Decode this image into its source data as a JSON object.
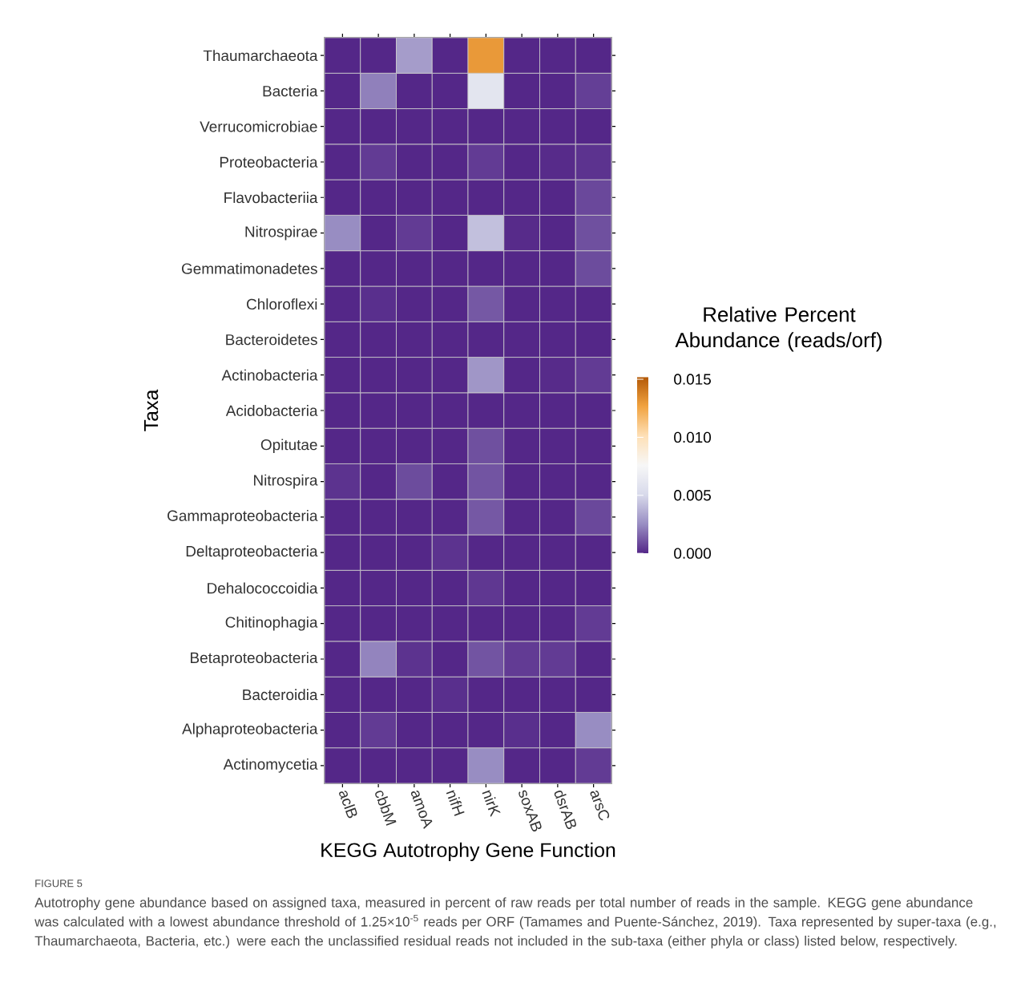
{
  "chart_data": {
    "type": "heatmap",
    "xlabel": "KEGG Autotrophy Gene Function",
    "ylabel": "Taxa",
    "clabel": "Relative Percent Abundance (reads/orf)",
    "categories": [
      "aclB",
      "cbbM",
      "amoA",
      "nifH",
      "nirK",
      "soxAB",
      "dsrAB",
      "arsC"
    ],
    "y_categories": [
      "Thaumarchaeota",
      "Bacteria",
      "Verrucomicrobiae",
      "Proteobacteria",
      "Flavobacteriia",
      "Nitrospirae",
      "Gemmatimonadetes",
      "Chloroflexi",
      "Bacteroidetes",
      "Actinobacteria",
      "Acidobacteria",
      "Opitutae",
      "Nitrospira",
      "Gammaproteobacteria",
      "Deltaproteobacteria",
      "Dehalococcoidia",
      "Chitinophagia",
      "Betaproteobacteria",
      "Bacteroidia",
      "Alphaproteobacteria",
      "Actinomycetia"
    ],
    "cells": [
      [
        0,
        0,
        0.003,
        0,
        0.013,
        0,
        0,
        0
      ],
      [
        0,
        0.0022,
        0,
        0,
        0.006,
        0,
        0,
        0.0006
      ],
      [
        0,
        0,
        0,
        0,
        0,
        0,
        0,
        0
      ],
      [
        0,
        0.0005,
        0,
        0,
        0.0005,
        0,
        0.0001,
        0.0003
      ],
      [
        0,
        0,
        0,
        0,
        0,
        0,
        0,
        0.0008
      ],
      [
        0.0025,
        0,
        0.0005,
        0,
        0.0042,
        0.0001,
        0,
        0.001
      ],
      [
        0,
        0,
        0,
        0,
        0,
        0,
        0,
        0.0009
      ],
      [
        0,
        0.0002,
        0,
        0,
        0.0012,
        0,
        0,
        0
      ],
      [
        0,
        0,
        0,
        0,
        0,
        0,
        0,
        0
      ],
      [
        0,
        0,
        0,
        0,
        0.0028,
        0,
        0.0001,
        0.0005
      ],
      [
        0,
        0,
        0,
        0,
        0,
        0,
        0,
        0
      ],
      [
        0,
        0,
        0,
        0,
        0.001,
        0,
        0,
        0
      ],
      [
        0.0003,
        0,
        0.0009,
        0,
        0.0011,
        0,
        0,
        0
      ],
      [
        0,
        0,
        0,
        0,
        0.0012,
        0,
        0,
        0.0008
      ],
      [
        0,
        0,
        0,
        0.0003,
        0,
        0,
        0,
        0
      ],
      [
        0,
        0,
        0,
        0,
        0.0004,
        0,
        0,
        0
      ],
      [
        0,
        0,
        0,
        0,
        0,
        0,
        0,
        0.0005
      ],
      [
        0,
        0.0023,
        0.0003,
        0,
        0.0011,
        0.0005,
        0.0005,
        0
      ],
      [
        0,
        0,
        0,
        0.0002,
        0,
        0,
        0,
        0
      ],
      [
        0,
        0.0005,
        0,
        0,
        0,
        0.0002,
        0,
        0.0025
      ],
      [
        0,
        0,
        0,
        0,
        0.0025,
        0,
        0,
        0.0005
      ]
    ],
    "clim": [
      0,
      0.0152
    ],
    "cticks": [
      {
        "value": 0,
        "label": "0.000"
      },
      {
        "value": 0.005,
        "label": "0.005"
      },
      {
        "value": 0.01,
        "label": "0.010"
      },
      {
        "value": 0.015,
        "label": "0.015"
      }
    ],
    "annotations": [
      "FIGURE 5",
      "Autotrophy gene abundance based on assigned taxa, measured in percent of raw reads per total number of reads in the sample. KEGG gene abundance was calculated with a lowest abundance threshold of 1.25×10$^{-5}$ reads per ORF (Tamames and Puente-Sánchez, 2019). Taxa represented by super-taxa (e.g., Thaumarchaeota, Bacteria, etc.) were each the unclassified residual reads not included in the sub-taxa (either phyla or class) listed below, respectively."
    ]
  }
}
